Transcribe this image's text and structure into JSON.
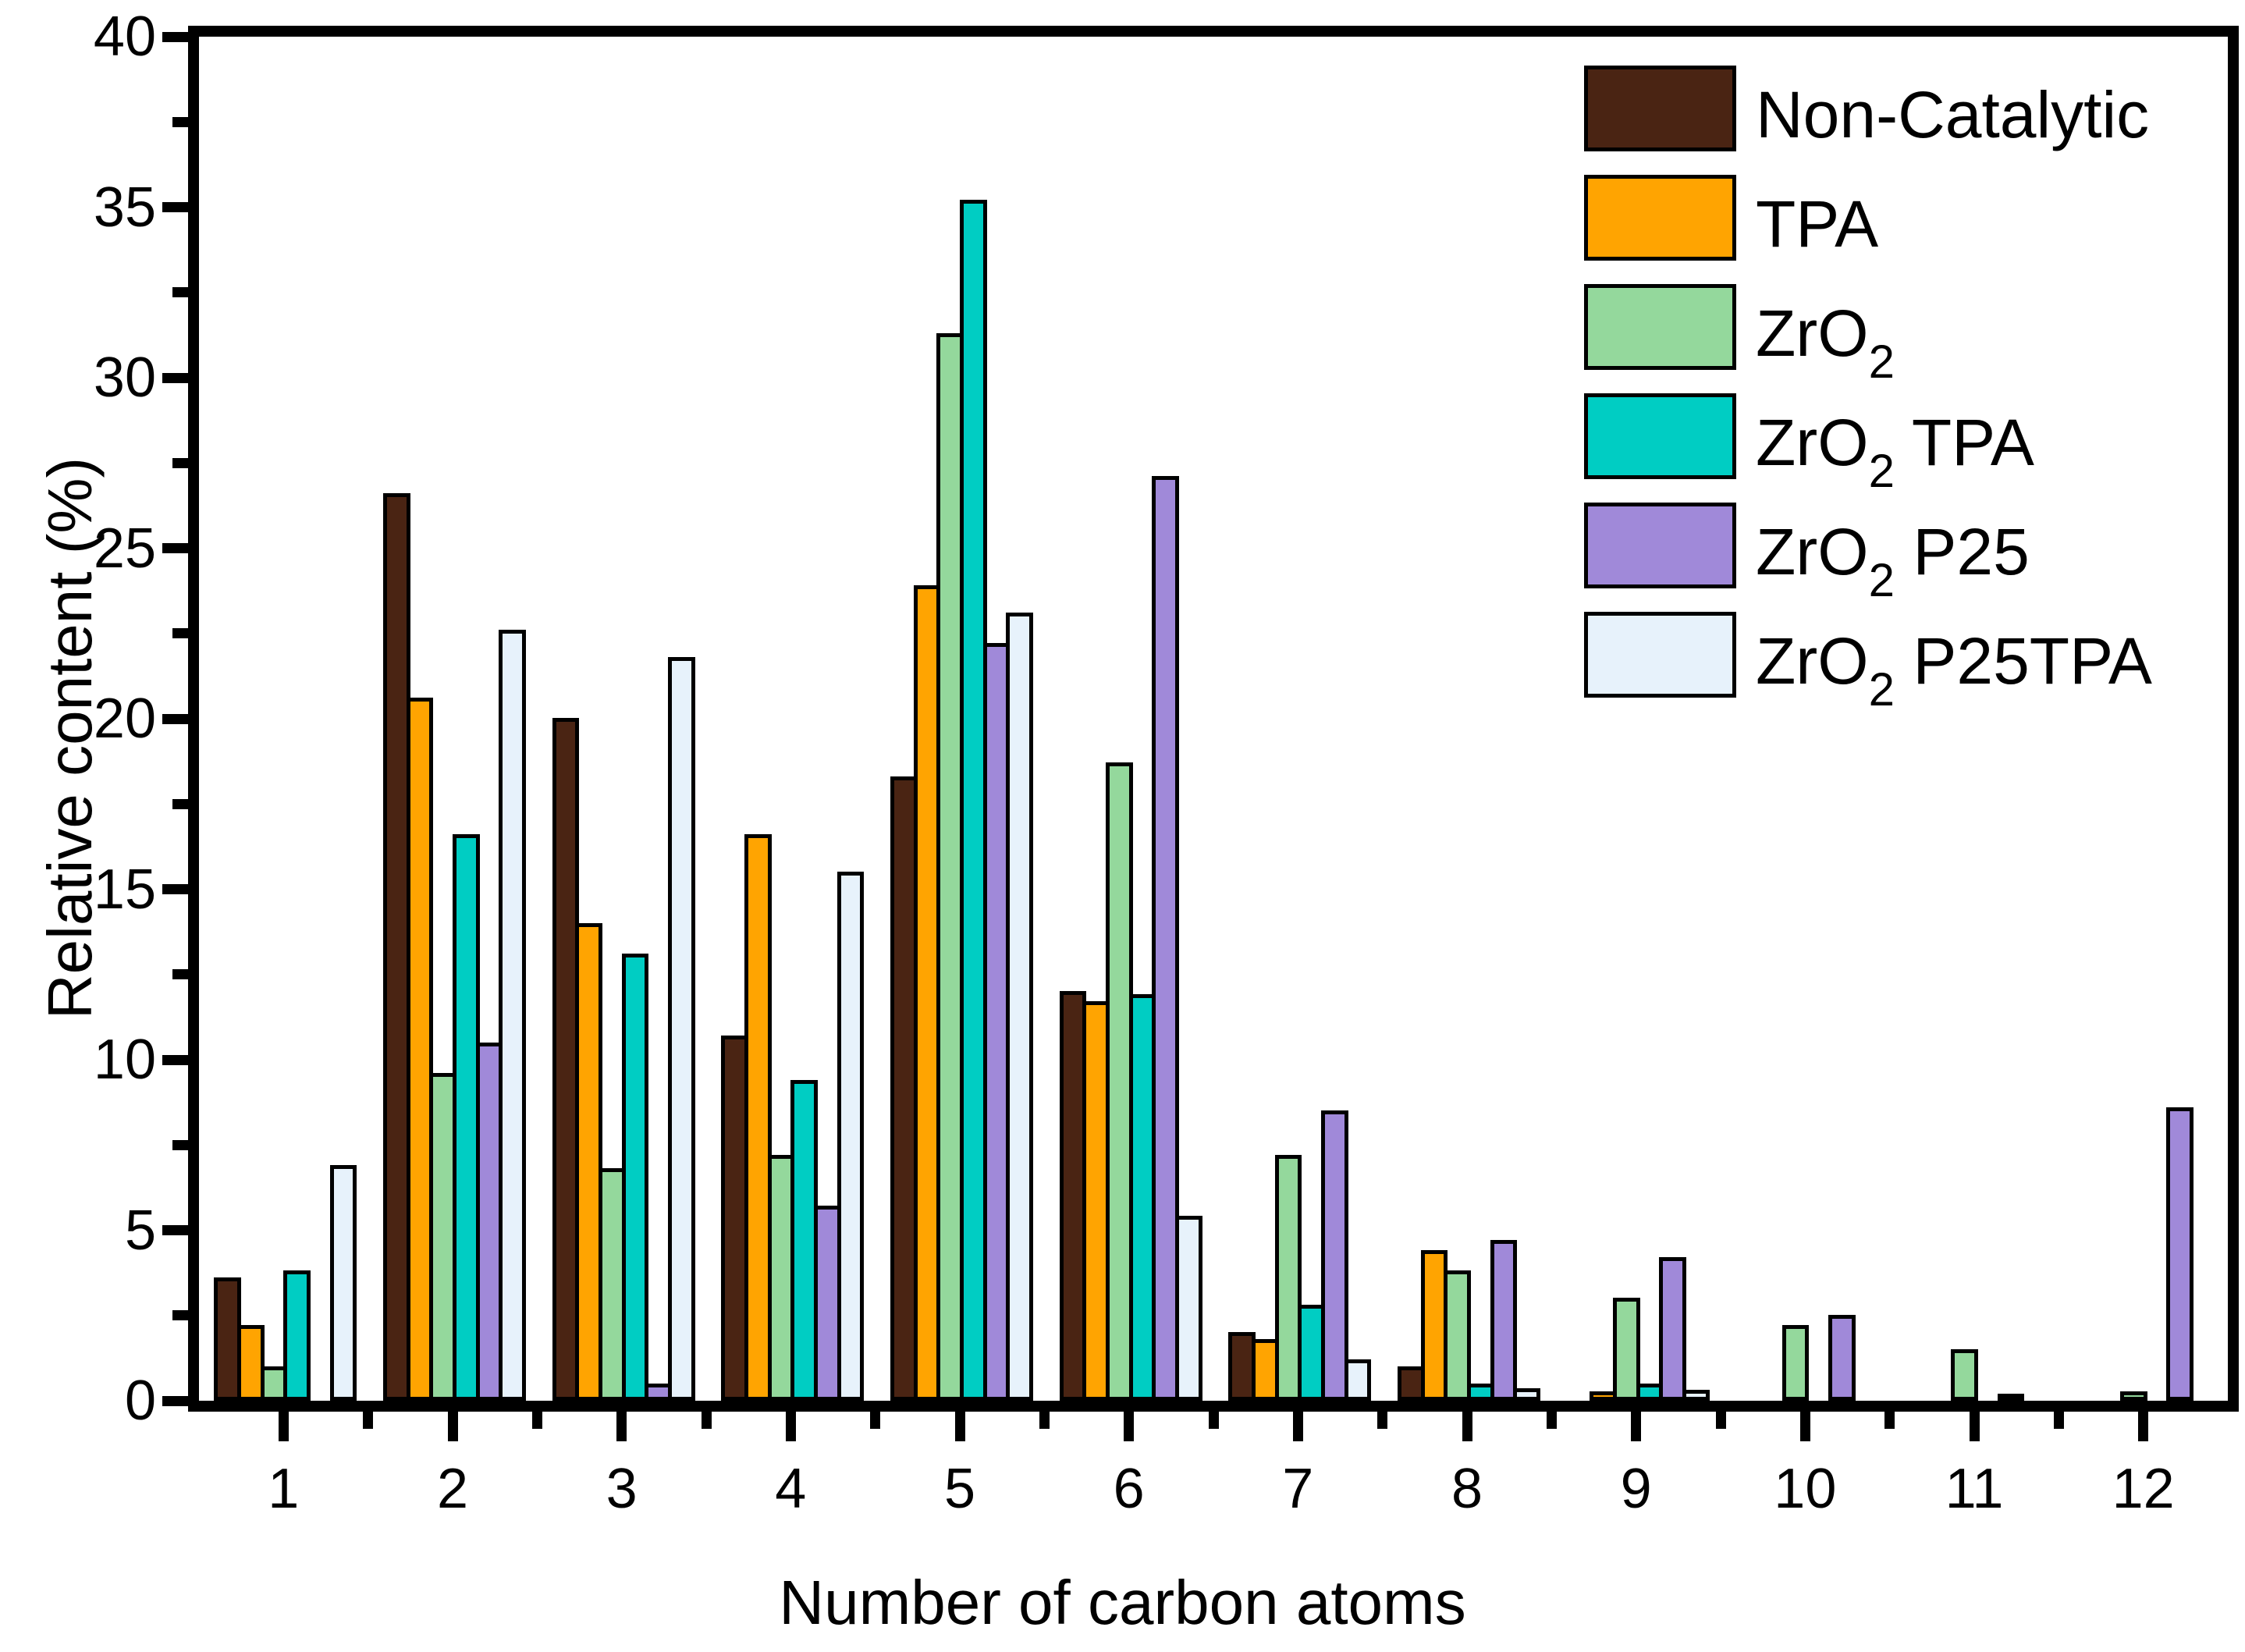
{
  "figure": {
    "background": "#ffffff",
    "frame_color": "#000000",
    "bar_outline_color": "#000000"
  },
  "chart_data": {
    "type": "bar",
    "title": "",
    "xlabel": "Number of carbon atoms",
    "ylabel": "Relative content (%)",
    "categories": [
      "1",
      "2",
      "3",
      "4",
      "5",
      "6",
      "7",
      "8",
      "9",
      "10",
      "11",
      "12"
    ],
    "ylim": [
      0,
      40
    ],
    "y_major_step": 5,
    "y_minor_step": 2.5,
    "y_tick_labels": [
      "0",
      "5",
      "10",
      "15",
      "20",
      "25",
      "30",
      "35",
      "40"
    ],
    "grid": "off",
    "legend_position": "top-right-inside",
    "series": [
      {
        "name": "Non-Catalytic",
        "label_pre": "Non-Catalytic",
        "label_sub": "",
        "label_post": "",
        "color": "#4A2413",
        "values": [
          3.5,
          26.5,
          19.9,
          10.6,
          18.2,
          11.9,
          1.9,
          0.9,
          0,
          0,
          0,
          0
        ]
      },
      {
        "name": "TPA",
        "label_pre": "TPA",
        "label_sub": "",
        "label_post": "",
        "color": "#FFA401",
        "values": [
          2.1,
          20.5,
          13.9,
          16.5,
          23.8,
          11.6,
          1.7,
          4.3,
          0.15,
          0,
          0,
          0
        ]
      },
      {
        "name": "ZrO2",
        "label_pre": "ZrO",
        "label_sub": "2",
        "label_post": "",
        "color": "#94D89C",
        "values": [
          0.9,
          9.5,
          6.7,
          7.1,
          31.2,
          18.6,
          7.1,
          3.7,
          2.9,
          2.1,
          1.4,
          0.15
        ]
      },
      {
        "name": "ZrO2 TPA",
        "label_pre": "ZrO",
        "label_sub": "2",
        "label_post": " TPA",
        "color": "#00CDC3",
        "values": [
          3.7,
          16.5,
          13.0,
          9.3,
          35.1,
          11.8,
          2.7,
          0.4,
          0.4,
          0,
          0,
          0
        ]
      },
      {
        "name": "ZrO2 P25",
        "label_pre": "ZrO",
        "label_sub": "2",
        "label_post": " P25",
        "color": "#A089D9",
        "values": [
          0,
          10.4,
          0.4,
          5.6,
          22.1,
          27.0,
          8.4,
          4.6,
          4.1,
          2.4,
          0.1,
          8.5
        ]
      },
      {
        "name": "ZrO2 P25TPA",
        "label_pre": "ZrO",
        "label_sub": "2",
        "label_post": " P25TPA",
        "color": "#E7F2FB",
        "values": [
          6.8,
          22.5,
          21.7,
          15.4,
          23.0,
          5.3,
          1.1,
          0.25,
          0.2,
          0,
          0,
          0
        ]
      }
    ]
  }
}
